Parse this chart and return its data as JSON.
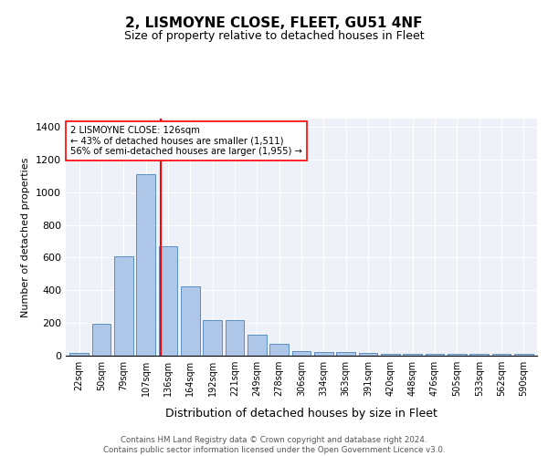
{
  "title": "2, LISMOYNE CLOSE, FLEET, GU51 4NF",
  "subtitle": "Size of property relative to detached houses in Fleet",
  "xlabel": "Distribution of detached houses by size in Fleet",
  "ylabel": "Number of detached properties",
  "bar_color": "#aec6e8",
  "bar_edge_color": "#5a8fc2",
  "background_color": "#eef2f8",
  "grid_color": "#ffffff",
  "categories": [
    "22sqm",
    "50sqm",
    "79sqm",
    "107sqm",
    "136sqm",
    "164sqm",
    "192sqm",
    "221sqm",
    "249sqm",
    "278sqm",
    "306sqm",
    "334sqm",
    "363sqm",
    "391sqm",
    "420sqm",
    "448sqm",
    "476sqm",
    "505sqm",
    "533sqm",
    "562sqm",
    "590sqm"
  ],
  "values": [
    18,
    193,
    610,
    1110,
    670,
    425,
    220,
    220,
    130,
    75,
    30,
    25,
    20,
    15,
    10,
    10,
    10,
    10,
    10,
    10,
    10
  ],
  "ylim": [
    0,
    1450
  ],
  "yticks": [
    0,
    200,
    400,
    600,
    800,
    1000,
    1200,
    1400
  ],
  "property_label": "2 LISMOYNE CLOSE: 126sqm",
  "pct_smaller": "43% of detached houses are smaller (1,511)",
  "pct_larger": "56% of semi-detached houses are larger (1,955)",
  "footer_line1": "Contains HM Land Registry data © Crown copyright and database right 2024.",
  "footer_line2": "Contains public sector information licensed under the Open Government Licence v3.0."
}
